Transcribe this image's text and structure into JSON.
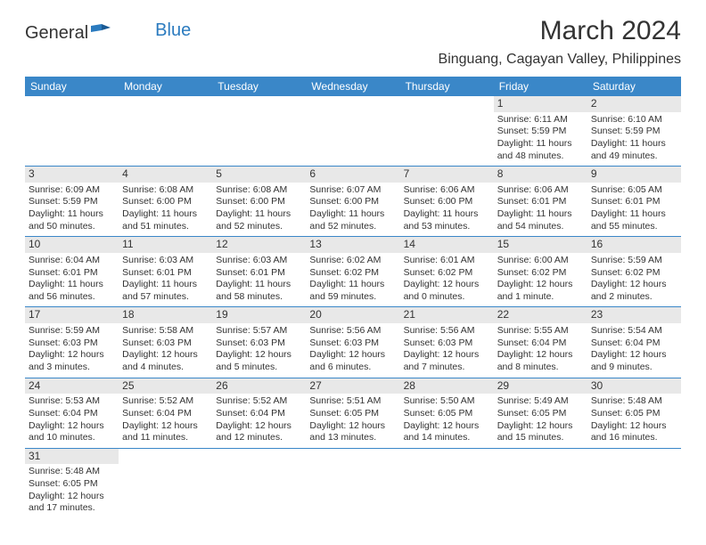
{
  "logo": {
    "text1": "General",
    "text2": "Blue"
  },
  "title": "March 2024",
  "location": "Binguang, Cagayan Valley, Philippines",
  "colors": {
    "header_bg": "#3a87c8",
    "header_fg": "#ffffff",
    "daynum_bg": "#e8e8e8",
    "border": "#3a87c8",
    "text": "#333333",
    "logo_blue": "#2b7bbf"
  },
  "dayHeaders": [
    "Sunday",
    "Monday",
    "Tuesday",
    "Wednesday",
    "Thursday",
    "Friday",
    "Saturday"
  ],
  "weeks": [
    [
      {
        "empty": true
      },
      {
        "empty": true
      },
      {
        "empty": true
      },
      {
        "empty": true
      },
      {
        "empty": true
      },
      {
        "day": "1",
        "sunrise": "6:11 AM",
        "sunset": "5:59 PM",
        "daylight": "11 hours and 48 minutes."
      },
      {
        "day": "2",
        "sunrise": "6:10 AM",
        "sunset": "5:59 PM",
        "daylight": "11 hours and 49 minutes."
      }
    ],
    [
      {
        "day": "3",
        "sunrise": "6:09 AM",
        "sunset": "5:59 PM",
        "daylight": "11 hours and 50 minutes."
      },
      {
        "day": "4",
        "sunrise": "6:08 AM",
        "sunset": "6:00 PM",
        "daylight": "11 hours and 51 minutes."
      },
      {
        "day": "5",
        "sunrise": "6:08 AM",
        "sunset": "6:00 PM",
        "daylight": "11 hours and 52 minutes."
      },
      {
        "day": "6",
        "sunrise": "6:07 AM",
        "sunset": "6:00 PM",
        "daylight": "11 hours and 52 minutes."
      },
      {
        "day": "7",
        "sunrise": "6:06 AM",
        "sunset": "6:00 PM",
        "daylight": "11 hours and 53 minutes."
      },
      {
        "day": "8",
        "sunrise": "6:06 AM",
        "sunset": "6:01 PM",
        "daylight": "11 hours and 54 minutes."
      },
      {
        "day": "9",
        "sunrise": "6:05 AM",
        "sunset": "6:01 PM",
        "daylight": "11 hours and 55 minutes."
      }
    ],
    [
      {
        "day": "10",
        "sunrise": "6:04 AM",
        "sunset": "6:01 PM",
        "daylight": "11 hours and 56 minutes."
      },
      {
        "day": "11",
        "sunrise": "6:03 AM",
        "sunset": "6:01 PM",
        "daylight": "11 hours and 57 minutes."
      },
      {
        "day": "12",
        "sunrise": "6:03 AM",
        "sunset": "6:01 PM",
        "daylight": "11 hours and 58 minutes."
      },
      {
        "day": "13",
        "sunrise": "6:02 AM",
        "sunset": "6:02 PM",
        "daylight": "11 hours and 59 minutes."
      },
      {
        "day": "14",
        "sunrise": "6:01 AM",
        "sunset": "6:02 PM",
        "daylight": "12 hours and 0 minutes."
      },
      {
        "day": "15",
        "sunrise": "6:00 AM",
        "sunset": "6:02 PM",
        "daylight": "12 hours and 1 minute."
      },
      {
        "day": "16",
        "sunrise": "5:59 AM",
        "sunset": "6:02 PM",
        "daylight": "12 hours and 2 minutes."
      }
    ],
    [
      {
        "day": "17",
        "sunrise": "5:59 AM",
        "sunset": "6:03 PM",
        "daylight": "12 hours and 3 minutes."
      },
      {
        "day": "18",
        "sunrise": "5:58 AM",
        "sunset": "6:03 PM",
        "daylight": "12 hours and 4 minutes."
      },
      {
        "day": "19",
        "sunrise": "5:57 AM",
        "sunset": "6:03 PM",
        "daylight": "12 hours and 5 minutes."
      },
      {
        "day": "20",
        "sunrise": "5:56 AM",
        "sunset": "6:03 PM",
        "daylight": "12 hours and 6 minutes."
      },
      {
        "day": "21",
        "sunrise": "5:56 AM",
        "sunset": "6:03 PM",
        "daylight": "12 hours and 7 minutes."
      },
      {
        "day": "22",
        "sunrise": "5:55 AM",
        "sunset": "6:04 PM",
        "daylight": "12 hours and 8 minutes."
      },
      {
        "day": "23",
        "sunrise": "5:54 AM",
        "sunset": "6:04 PM",
        "daylight": "12 hours and 9 minutes."
      }
    ],
    [
      {
        "day": "24",
        "sunrise": "5:53 AM",
        "sunset": "6:04 PM",
        "daylight": "12 hours and 10 minutes."
      },
      {
        "day": "25",
        "sunrise": "5:52 AM",
        "sunset": "6:04 PM",
        "daylight": "12 hours and 11 minutes."
      },
      {
        "day": "26",
        "sunrise": "5:52 AM",
        "sunset": "6:04 PM",
        "daylight": "12 hours and 12 minutes."
      },
      {
        "day": "27",
        "sunrise": "5:51 AM",
        "sunset": "6:05 PM",
        "daylight": "12 hours and 13 minutes."
      },
      {
        "day": "28",
        "sunrise": "5:50 AM",
        "sunset": "6:05 PM",
        "daylight": "12 hours and 14 minutes."
      },
      {
        "day": "29",
        "sunrise": "5:49 AM",
        "sunset": "6:05 PM",
        "daylight": "12 hours and 15 minutes."
      },
      {
        "day": "30",
        "sunrise": "5:48 AM",
        "sunset": "6:05 PM",
        "daylight": "12 hours and 16 minutes."
      }
    ],
    [
      {
        "day": "31",
        "sunrise": "5:48 AM",
        "sunset": "6:05 PM",
        "daylight": "12 hours and 17 minutes."
      },
      {
        "empty": true
      },
      {
        "empty": true
      },
      {
        "empty": true
      },
      {
        "empty": true
      },
      {
        "empty": true
      },
      {
        "empty": true
      }
    ]
  ],
  "labels": {
    "sunrise": "Sunrise: ",
    "sunset": "Sunset: ",
    "daylight": "Daylight: "
  }
}
